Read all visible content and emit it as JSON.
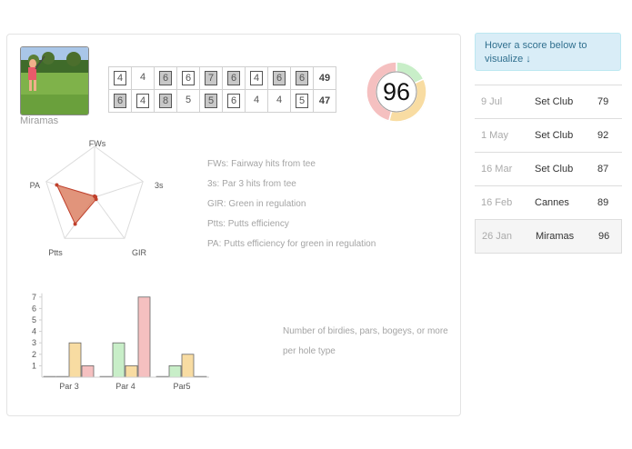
{
  "round": {
    "photo_caption": "Miramas",
    "scorecard": [
      {
        "holes": [
          {
            "score": "4",
            "mark": "box"
          },
          {
            "score": "4",
            "mark": "none"
          },
          {
            "score": "6",
            "mark": "shade"
          },
          {
            "score": "6",
            "mark": "box"
          },
          {
            "score": "7",
            "mark": "shade"
          },
          {
            "score": "6",
            "mark": "shade"
          },
          {
            "score": "4",
            "mark": "box"
          },
          {
            "score": "6",
            "mark": "shade"
          },
          {
            "score": "6",
            "mark": "shade"
          }
        ],
        "total": "49"
      },
      {
        "holes": [
          {
            "score": "6",
            "mark": "shade"
          },
          {
            "score": "4",
            "mark": "box"
          },
          {
            "score": "8",
            "mark": "shade"
          },
          {
            "score": "5",
            "mark": "none"
          },
          {
            "score": "5",
            "mark": "shade"
          },
          {
            "score": "6",
            "mark": "box"
          },
          {
            "score": "4",
            "mark": "none"
          },
          {
            "score": "4",
            "mark": "none"
          },
          {
            "score": "5",
            "mark": "box"
          }
        ],
        "total": "47"
      }
    ],
    "total_score": "96",
    "ring_segments": [
      {
        "share": 0.18,
        "color": "#c8eec8"
      },
      {
        "share": 0.36,
        "color": "#f8dca2"
      },
      {
        "share": 0.46,
        "color": "#f5c0c0"
      }
    ]
  },
  "radar": {
    "axes": [
      "FWs",
      "3s",
      "GIR",
      "Ptts",
      "PA"
    ],
    "values": [
      0.0,
      0.0,
      0.05,
      0.65,
      0.78
    ],
    "fill_color": "#d9795a",
    "point_color": "#c0412d"
  },
  "legend": [
    "FWs: Fairway hits from tee",
    "3s: Par 3 hits from tee",
    "GIR: Green in regulation",
    "Ptts: Putts efficiency",
    "PA: Putts efficiency for green in regulation"
  ],
  "chart_data": {
    "type": "bar",
    "categories": [
      "Par 3",
      "Par 4",
      "Par5"
    ],
    "series": [
      {
        "values": [
          0,
          0,
          0
        ],
        "color": "#9fc3e6"
      },
      {
        "values": [
          0,
          3,
          1
        ],
        "color": "#c8eec8"
      },
      {
        "values": [
          3,
          1,
          2
        ],
        "color": "#f8dca2"
      },
      {
        "values": [
          1,
          7,
          0
        ],
        "color": "#f5c0c0"
      }
    ],
    "yticks": [
      "1",
      "2",
      "3",
      "4",
      "5",
      "6",
      "7"
    ],
    "ylim": [
      0,
      7
    ],
    "grid": false,
    "note": "Number of birdies, pars, bogeys, or more per hole type"
  },
  "hint": "Hover a score below to visualize ↓",
  "history": [
    {
      "date": "9 Jul",
      "course": "Set Club",
      "score": "79"
    },
    {
      "date": "1 May",
      "course": "Set Club",
      "score": "92"
    },
    {
      "date": "16 Mar",
      "course": "Set Club",
      "score": "87"
    },
    {
      "date": "16 Feb",
      "course": "Cannes",
      "score": "89"
    },
    {
      "date": "26 Jan",
      "course": "Miramas",
      "score": "96"
    }
  ],
  "active_history_index": 4
}
